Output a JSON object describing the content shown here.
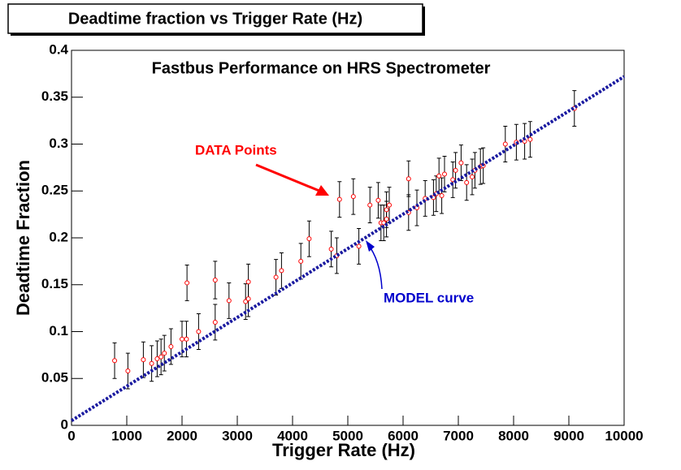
{
  "chart_data": {
    "type": "scatter",
    "title": "Deadtime fraction vs Trigger Rate (Hz)",
    "subtitle": "Fastbus  Performance  on  HRS  Spectrometer",
    "x_label": "Trigger Rate  (Hz)",
    "y_label": "Deadtime Fraction",
    "annotations": [
      {
        "text": "DATA Points",
        "color": "#ff0000"
      },
      {
        "text": "MODEL  curve",
        "color": "#0000cc"
      }
    ],
    "xlim": [
      0,
      10000
    ],
    "xticks": [
      0,
      1000,
      2000,
      3000,
      4000,
      5000,
      6000,
      7000,
      8000,
      9000,
      10000
    ],
    "ylim": [
      0,
      0.4
    ],
    "yticks": [
      0,
      0.05,
      0.1,
      0.15,
      0.2,
      0.25,
      0.3,
      0.35,
      0.4
    ],
    "series": [
      {
        "type": "errorbar",
        "color": "#ff0000",
        "x": [
          780,
          1020,
          1300,
          1450,
          1550,
          1620,
          1680,
          1800,
          2000,
          2080,
          2090,
          2300,
          2600,
          2600,
          2850,
          3150,
          3200,
          3200,
          3700,
          3800,
          4150,
          4300,
          4700,
          4800,
          4850,
          5100,
          5200,
          5400,
          5550,
          5600,
          5650,
          5700,
          5700,
          5750,
          6100,
          6100,
          6250,
          6400,
          6550,
          6600,
          6650,
          6700,
          6750,
          6900,
          6950,
          7050,
          7150,
          7250,
          7300,
          7400,
          7450,
          7850,
          8050,
          8200,
          8300,
          9100
        ],
        "values": [
          0.069,
          0.058,
          0.07,
          0.066,
          0.071,
          0.073,
          0.077,
          0.084,
          0.092,
          0.092,
          0.152,
          0.1,
          0.11,
          0.155,
          0.133,
          0.132,
          0.135,
          0.153,
          0.158,
          0.165,
          0.175,
          0.199,
          0.188,
          0.181,
          0.241,
          0.244,
          0.191,
          0.235,
          0.24,
          0.216,
          0.216,
          0.22,
          0.23,
          0.235,
          0.263,
          0.227,
          0.232,
          0.242,
          0.243,
          0.247,
          0.266,
          0.245,
          0.268,
          0.262,
          0.272,
          0.28,
          0.259,
          0.265,
          0.272,
          0.276,
          0.277,
          0.3,
          0.302,
          0.303,
          0.305,
          0.338
        ],
        "errors": [
          0.019,
          0.019,
          0.019,
          0.019,
          0.019,
          0.019,
          0.019,
          0.019,
          0.019,
          0.019,
          0.019,
          0.019,
          0.019,
          0.02,
          0.019,
          0.019,
          0.019,
          0.019,
          0.019,
          0.019,
          0.019,
          0.019,
          0.019,
          0.019,
          0.019,
          0.019,
          0.019,
          0.019,
          0.019,
          0.019,
          0.019,
          0.019,
          0.019,
          0.019,
          0.019,
          0.019,
          0.019,
          0.019,
          0.019,
          0.019,
          0.019,
          0.019,
          0.019,
          0.019,
          0.019,
          0.019,
          0.019,
          0.019,
          0.019,
          0.019,
          0.019,
          0.019,
          0.019,
          0.019,
          0.019,
          0.019
        ]
      },
      {
        "type": "line",
        "color": "#1a1aa0",
        "x": [
          0,
          10000
        ],
        "values": [
          0.005,
          0.372
        ]
      }
    ]
  }
}
